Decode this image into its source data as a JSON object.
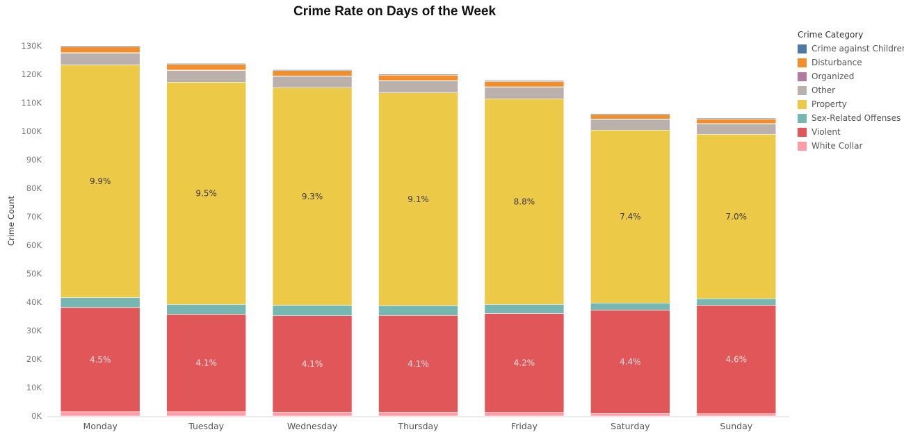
{
  "chart_data": {
    "type": "bar",
    "stacked": true,
    "title": "Crime Rate on Days of the Week",
    "xlabel": "",
    "ylabel": "Crime Count",
    "ylim": [
      0,
      130000
    ],
    "yticks": [
      0,
      10000,
      20000,
      30000,
      40000,
      50000,
      60000,
      70000,
      80000,
      90000,
      100000,
      110000,
      120000,
      130000
    ],
    "ytick_labels": [
      "0K",
      "10K",
      "20K",
      "30K",
      "40K",
      "50K",
      "60K",
      "70K",
      "80K",
      "90K",
      "100K",
      "110K",
      "120K",
      "130K"
    ],
    "categories": [
      "Monday",
      "Tuesday",
      "Wednesday",
      "Thursday",
      "Friday",
      "Saturday",
      "Sunday"
    ],
    "legend_title": "Crime Category",
    "legend_position": "right",
    "grid": false,
    "series": [
      {
        "name": "Crime against Children",
        "color": "#4e79a7",
        "values": [
          300,
          300,
          300,
          300,
          300,
          300,
          300
        ]
      },
      {
        "name": "Disturbance",
        "color": "#f28e2b",
        "values": [
          2100,
          2000,
          1900,
          1900,
          1900,
          1600,
          1600
        ]
      },
      {
        "name": "Organized",
        "color": "#b07aa1",
        "values": [
          100,
          100,
          100,
          100,
          100,
          100,
          100
        ]
      },
      {
        "name": "Other",
        "color": "#bab0ac",
        "values": [
          4200,
          4200,
          4000,
          4200,
          4100,
          3800,
          3700
        ]
      },
      {
        "name": "Property",
        "color": "#edc948",
        "values": [
          81700,
          78000,
          76400,
          74700,
          72200,
          60700,
          57700
        ]
      },
      {
        "name": "Sex-Related Offenses",
        "color": "#76b7b2",
        "values": [
          3500,
          3500,
          3700,
          3500,
          3200,
          2500,
          2300
        ]
      },
      {
        "name": "Violent",
        "color": "#e15759",
        "values": [
          36600,
          34200,
          33800,
          33900,
          34700,
          36300,
          38100
        ]
      },
      {
        "name": "White Collar",
        "color": "#ff9da7",
        "values": [
          1500,
          1500,
          1400,
          1400,
          1300,
          900,
          800
        ]
      }
    ],
    "data_labels": {
      "Property": [
        "9.9%",
        "9.5%",
        "9.3%",
        "9.1%",
        "8.8%",
        "7.4%",
        "7.0%"
      ],
      "Violent": [
        "4.5%",
        "4.1%",
        "4.1%",
        "4.1%",
        "4.2%",
        "4.4%",
        "4.6%"
      ]
    }
  }
}
